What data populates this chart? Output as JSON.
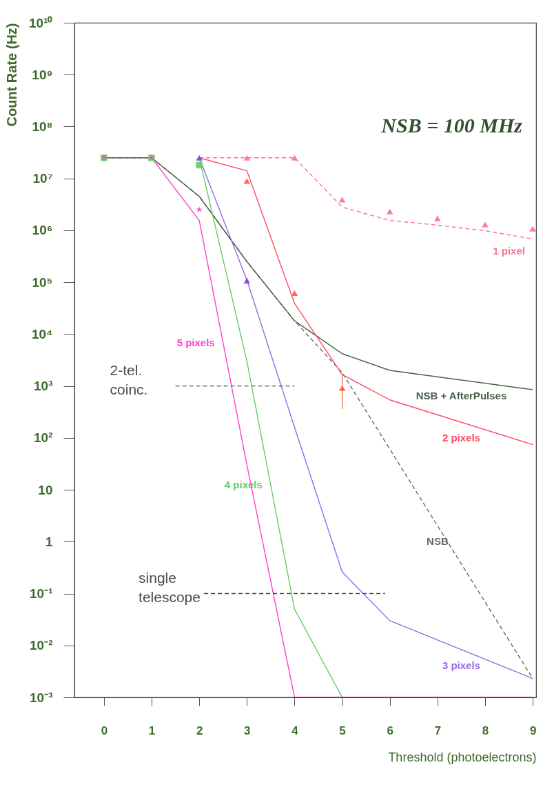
{
  "chart_data": {
    "type": "line",
    "title": "NSB = 100 MHz",
    "xlabel": "Threshold (photoelectrons)",
    "ylabel": "Count Rate (Hz)",
    "log": "y",
    "grid": false,
    "xlim": [
      -0.62,
      9.07
    ],
    "xticks": [
      0,
      1,
      2,
      3,
      4,
      5,
      6,
      7,
      8,
      9
    ],
    "ylim": [
      0.001,
      10000000000
    ],
    "yticks": [
      {
        "value": 0.001,
        "label": "10⁻³"
      },
      {
        "value": 0.01,
        "label": "10⁻²"
      },
      {
        "value": 0.1,
        "label": "10⁻¹"
      },
      1,
      10,
      {
        "value": 100,
        "label": "10²"
      },
      {
        "value": 1000,
        "label": "10³"
      },
      {
        "value": 10000,
        "label": "10⁴"
      },
      {
        "value": 100000,
        "label": "10⁵"
      },
      {
        "value": 1000000,
        "label": "10⁶"
      },
      {
        "value": 10000000,
        "label": "10⁷"
      },
      {
        "value": 100000000,
        "label": "10⁸"
      },
      {
        "value": 1000000000,
        "label": "10⁹"
      },
      {
        "value": 10000000000,
        "label": "10¹⁰"
      }
    ],
    "series": [
      {
        "name": "NSB",
        "color": "#5f6a5f",
        "line_style": "dashed",
        "marker": "none",
        "x": [
          0,
          1,
          2,
          3,
          4,
          5,
          9
        ],
        "values": [
          25000000,
          25000000,
          4500000,
          250000,
          18000,
          1800,
          0.0023
        ]
      },
      {
        "name": "NSB + AfterPulses",
        "color": "#4a5e4a",
        "line_style": "solid",
        "marker": "none",
        "x": [
          0,
          1,
          2,
          3,
          4,
          5,
          6,
          9
        ],
        "values": [
          25000000,
          25000000,
          4500000,
          250000,
          18000,
          4200,
          2000,
          850
        ]
      },
      {
        "name": "1 pixel",
        "color": "#ff6f8f",
        "line_style": "dashed",
        "marker": "none",
        "x": [
          2,
          3,
          4,
          5,
          6,
          7,
          8,
          9
        ],
        "values": [
          25000000,
          25000000,
          25000000,
          2800000,
          1550000,
          1260000,
          980000,
          680000
        ]
      },
      {
        "name": "2 pixels",
        "color": "#ff4a60",
        "line_style": "solid",
        "marker": "none",
        "x": [
          2,
          3,
          4,
          5,
          6,
          9
        ],
        "values": [
          25000000,
          14000000,
          39000,
          1660,
          540,
          74
        ]
      },
      {
        "name": "3 pixels",
        "color": "#9a66e6",
        "line_style": "solid",
        "marker": "none",
        "x": [
          2,
          3,
          4,
          5,
          6,
          9
        ],
        "values": [
          25000000,
          110000,
          160,
          0.26,
          0.03,
          0.0023
        ]
      },
      {
        "name": "4 pixels",
        "color": "#66cc66",
        "line_style": "solid",
        "marker": "none",
        "x": [
          2,
          3,
          4,
          5
        ],
        "values": [
          25000000,
          3000,
          0.05,
          0.001
        ]
      },
      {
        "name": "5 pixels",
        "color": "#ff3fc8",
        "line_style": "solid",
        "marker": "none",
        "x": [
          1,
          2,
          3,
          4,
          9
        ],
        "values": [
          25000000,
          1550000,
          30,
          0.001,
          0.001
        ]
      },
      {
        "name": "2-tel. coinc.",
        "color": "#2f5a2f",
        "line_style": "dashed",
        "marker": "none",
        "x": [
          1.5,
          4
        ],
        "values": [
          1000,
          1000
        ]
      },
      {
        "name": "single telescope",
        "color": "#2f5a2f",
        "line_style": "dashed",
        "marker": "none",
        "x": [
          2.1,
          5.9
        ],
        "values": [
          0.1,
          0.1
        ]
      },
      {
        "type": "scatter",
        "color": "#ff6f8f",
        "marker": "triangle",
        "x": [
          3,
          4,
          5,
          6,
          7,
          8,
          9
        ],
        "values": [
          25000000,
          25000000,
          3900000,
          2300000,
          1700000,
          1300000,
          1070000
        ]
      },
      {
        "type": "scatter",
        "color": "#ff5a3a",
        "marker": "triangle",
        "x": [
          3,
          4,
          5
        ],
        "values": [
          8900000,
          62000,
          910
        ],
        "errors": [
          null,
          null,
          [
            360,
            1600
          ]
        ]
      },
      {
        "type": "scatter",
        "color": "#7a4ad0",
        "marker": "triangle",
        "x": [
          2,
          3
        ],
        "values": [
          25000000,
          107000
        ]
      },
      {
        "type": "scatter",
        "color": "#66cc66",
        "marker": "square",
        "x": [
          0,
          1,
          2
        ],
        "values": [
          25000000,
          25000000,
          18000000
        ]
      },
      {
        "type": "scatter",
        "color": "#ff3fc8",
        "marker": "star",
        "x": [
          0,
          1,
          2
        ],
        "values": [
          25000000,
          25000000,
          2500000
        ]
      }
    ]
  }
}
